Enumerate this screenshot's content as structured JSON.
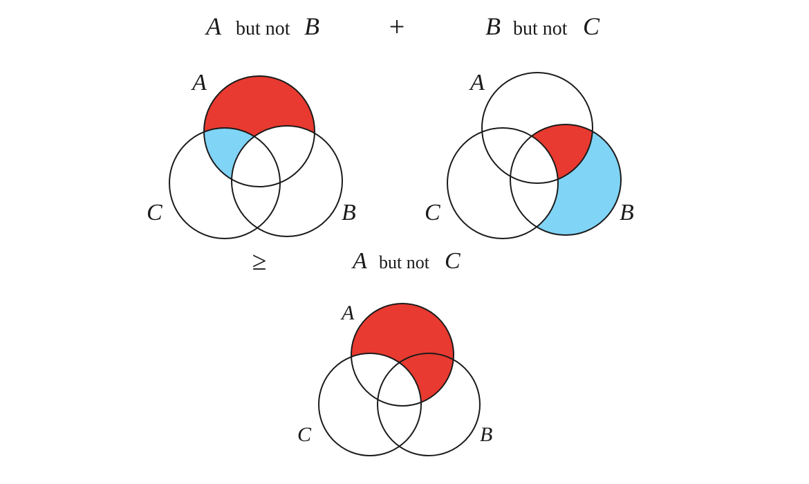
{
  "colors": {
    "red": "#e83a30",
    "blue": "#80d4f6",
    "stroke": "#1a1a1a",
    "background": "#ffffff"
  },
  "top_left": {
    "caption_set1": "A",
    "caption_connector": "but not",
    "caption_set2": "B",
    "label_a": "A",
    "label_b": "B",
    "label_c": "C"
  },
  "plus_sign": "+",
  "top_right": {
    "caption_set1": "B",
    "caption_connector": "but not",
    "caption_set2": "C",
    "label_a": "A",
    "label_b": "B",
    "label_c": "C"
  },
  "geq_sign": "≥",
  "bottom": {
    "caption_set1": "A",
    "caption_connector": "but not",
    "caption_set2": "C",
    "label_a": "A",
    "label_b": "B",
    "label_c": "C"
  }
}
